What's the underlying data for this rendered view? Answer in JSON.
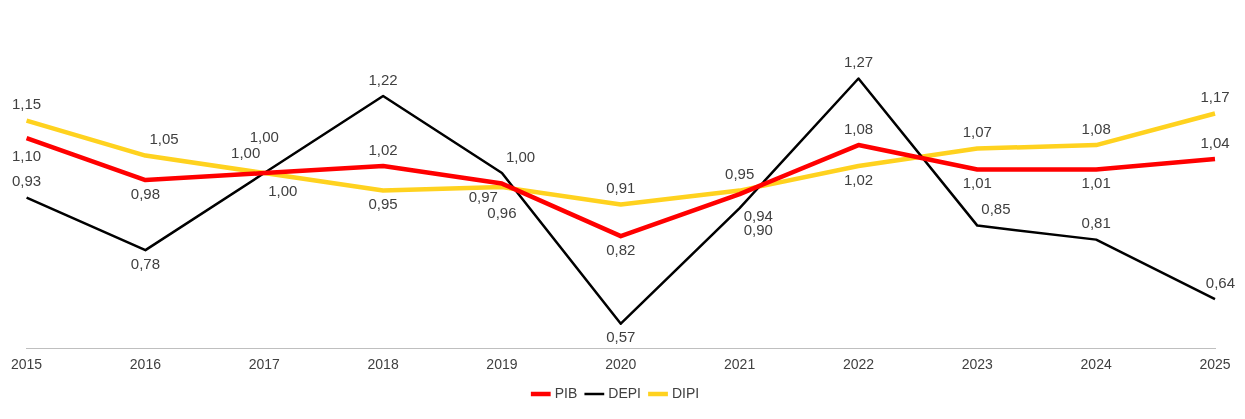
{
  "chart_data": {
    "type": "line",
    "categories": [
      "2015",
      "2016",
      "2017",
      "2018",
      "2019",
      "2020",
      "2021",
      "2022",
      "2023",
      "2024",
      "2025"
    ],
    "series": [
      {
        "name": "PIB",
        "color": "#ff0000",
        "values": [
          1.1,
          0.98,
          1.0,
          1.02,
          0.97,
          0.82,
          0.94,
          1.08,
          1.01,
          1.01,
          1.04
        ],
        "value_labels": [
          "1,10",
          "0,98",
          "1,00",
          "1,02",
          "0,97",
          "0,82",
          "0,94",
          "1,08",
          "1,01",
          "1,01",
          "1,04"
        ]
      },
      {
        "name": "DEPI",
        "color": "#000000",
        "values": [
          0.93,
          0.78,
          1.0,
          1.22,
          1.0,
          0.57,
          0.9,
          1.27,
          0.85,
          0.81,
          0.64
        ],
        "value_labels": [
          "0,93",
          "0,78",
          "1,00",
          "1,22",
          "1,00",
          "0,57",
          "0,90",
          "1,27",
          "0,85",
          "0,81",
          "0,64"
        ]
      },
      {
        "name": "DIPI",
        "color": "#ffd21f",
        "values": [
          1.15,
          1.05,
          1.0,
          0.95,
          0.96,
          0.91,
          0.95,
          1.02,
          1.07,
          1.08,
          1.17
        ],
        "value_labels": [
          "1,15",
          "1,05",
          "1,00",
          "0,95",
          "0,96",
          "0,91",
          "0,95",
          "1,02",
          "1,07",
          "1,08",
          "1,17"
        ]
      }
    ],
    "tick_labels": "x",
    "grid": false,
    "legend": "bottom",
    "marker": "none",
    "line_style": "solid"
  }
}
